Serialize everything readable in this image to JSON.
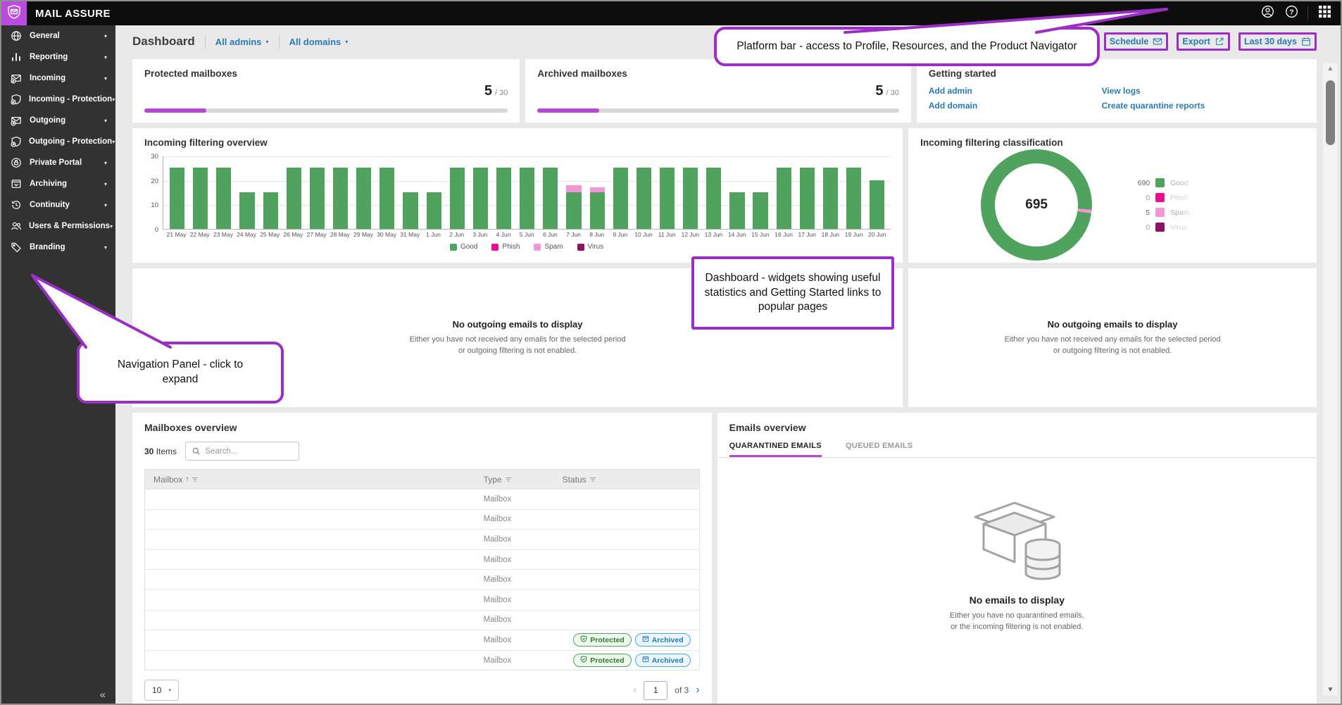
{
  "topbar": {
    "brand": "MAIL ASSURE"
  },
  "icons": {
    "caret_down": "▾",
    "collapse": "«",
    "prev": "‹",
    "next": "›",
    "sort_asc": "↑",
    "up_arrow": "▲",
    "down_arrow": "▼"
  },
  "sidebar": {
    "items": [
      {
        "label": "General",
        "icon": "globe-icon"
      },
      {
        "label": "Reporting",
        "icon": "report-bars-icon"
      },
      {
        "label": "Incoming",
        "icon": "mail-incoming-icon"
      },
      {
        "label": "Incoming - Protection",
        "icon": "shield-incoming-icon"
      },
      {
        "label": "Outgoing",
        "icon": "mail-outgoing-icon"
      },
      {
        "label": "Outgoing - Protection",
        "icon": "shield-outgoing-icon"
      },
      {
        "label": "Private Portal",
        "icon": "lock-circle-icon"
      },
      {
        "label": "Archiving",
        "icon": "archive-box-icon"
      },
      {
        "label": "Continuity",
        "icon": "history-clock-icon"
      },
      {
        "label": "Users & Permissions",
        "icon": "users-icon"
      },
      {
        "label": "Branding",
        "icon": "tag-icon"
      }
    ]
  },
  "header": {
    "title": "Dashboard",
    "admin_filter": "All admins",
    "domain_filter": "All domains",
    "actions": [
      {
        "label": "Schedule",
        "icon": "envelope-icon"
      },
      {
        "label": "Export",
        "icon": "export-icon"
      },
      {
        "label": "Last 30 days",
        "icon": "calendar-icon"
      }
    ]
  },
  "widgets": {
    "protected": {
      "title": "Protected mailboxes",
      "value": "5",
      "of": "/ 30",
      "progress_pct": 17
    },
    "archived": {
      "title": "Archived mailboxes",
      "value": "5",
      "of": "/ 30",
      "progress_pct": 17
    },
    "getting_started": {
      "title": "Getting started",
      "links_left": [
        "Add admin",
        "Add domain"
      ],
      "links_right": [
        "View logs",
        "Create quarantine reports"
      ]
    },
    "outgoing_left": {
      "title": "No outgoing emails to display",
      "line1": "Either you have not received any emails for the selected period",
      "line2": "or outgoing filtering is not enabled."
    },
    "outgoing_right": {
      "title": "No outgoing emails to display",
      "line1": "Either you have not received any emails for the selected period",
      "line2": "or outgoing filtering is not enabled."
    }
  },
  "chart_data": [
    {
      "type": "bar",
      "title": "Incoming filtering overview",
      "categories": [
        "21 May",
        "22 May",
        "23 May",
        "24 May",
        "25 May",
        "26 May",
        "27 May",
        "28 May",
        "29 May",
        "30 May",
        "31 May",
        "1 Jun",
        "2 Jun",
        "3 Jun",
        "4 Jun",
        "5 Jun",
        "6 Jun",
        "7 Jun",
        "8 Jun",
        "9 Jun",
        "10 Jun",
        "11 Jun",
        "12 Jun",
        "13 Jun",
        "14 Jun",
        "15 Jun",
        "16 Jun",
        "17 Jun",
        "18 Jun",
        "19 Jun",
        "20 Jun"
      ],
      "series": [
        {
          "name": "Good",
          "color": "#4fa35e",
          "values": [
            25,
            25,
            25,
            15,
            15,
            25,
            25,
            25,
            25,
            25,
            15,
            15,
            25,
            25,
            25,
            25,
            25,
            15,
            15,
            25,
            25,
            25,
            25,
            25,
            15,
            15,
            25,
            25,
            25,
            25,
            20
          ]
        },
        {
          "name": "Phish",
          "color": "#ec0c8e",
          "values": [
            0,
            0,
            0,
            0,
            0,
            0,
            0,
            0,
            0,
            0,
            0,
            0,
            0,
            0,
            0,
            0,
            0,
            0,
            0,
            0,
            0,
            0,
            0,
            0,
            0,
            0,
            0,
            0,
            0,
            0,
            0
          ]
        },
        {
          "name": "Spam",
          "color": "#f495d6",
          "values": [
            0,
            0,
            0,
            0,
            0,
            0,
            0,
            0,
            0,
            0,
            0,
            0,
            0,
            0,
            0,
            0,
            0,
            3,
            2,
            0,
            0,
            0,
            0,
            0,
            0,
            0,
            0,
            0,
            0,
            0,
            0
          ]
        },
        {
          "name": "Virus",
          "color": "#8d1164",
          "values": [
            0,
            0,
            0,
            0,
            0,
            0,
            0,
            0,
            0,
            0,
            0,
            0,
            0,
            0,
            0,
            0,
            0,
            0,
            0,
            0,
            0,
            0,
            0,
            0,
            0,
            0,
            0,
            0,
            0,
            0,
            0
          ]
        }
      ],
      "ylim": [
        0,
        30
      ],
      "yticks": [
        0,
        10,
        20,
        30
      ],
      "grid": true,
      "legend": [
        "Good",
        "Phish",
        "Spam",
        "Virus"
      ],
      "legend_position": "bottom"
    },
    {
      "type": "donut",
      "title": "Incoming filtering classification",
      "total": "695",
      "segments": [
        {
          "label": "Good",
          "value": 690,
          "color": "#4fa35e"
        },
        {
          "label": "Phish",
          "value": 0,
          "color": "#ec0c8e"
        },
        {
          "label": "Spam",
          "value": 5,
          "color": "#f495d6"
        },
        {
          "label": "Virus",
          "value": 0,
          "color": "#8d1164"
        }
      ],
      "legend_position": "right"
    }
  ],
  "mailboxes": {
    "title": "Mailboxes overview",
    "items_count": "30",
    "items_label": "Items",
    "search_placeholder": "Search...",
    "columns": [
      "Mailbox",
      "Type",
      "Status"
    ],
    "badge_labels": {
      "protected": "Protected",
      "archived": "Archived"
    },
    "rows": [
      {
        "type": "Mailbox",
        "badges": [],
        "blur_width": 102
      },
      {
        "type": "Mailbox",
        "badges": [],
        "blur_width": 118
      },
      {
        "type": "Mailbox",
        "badges": [],
        "blur_width": 128
      },
      {
        "type": "Mailbox",
        "badges": [],
        "blur_width": 100
      },
      {
        "type": "Mailbox",
        "badges": [],
        "blur_width": 124
      },
      {
        "type": "Mailbox",
        "badges": [],
        "blur_width": 96
      },
      {
        "type": "Mailbox",
        "badges": [],
        "blur_width": 110
      },
      {
        "type": "Mailbox",
        "badges": [
          "Protected",
          "Archived"
        ],
        "blur_width": 88
      },
      {
        "type": "Mailbox",
        "badges": [
          "Protected",
          "Archived"
        ],
        "blur_width": 86
      }
    ],
    "pagination": {
      "page_size": "10",
      "current_page": "1",
      "of": "of 3"
    }
  },
  "emails": {
    "title": "Emails overview",
    "tabs": [
      {
        "label": "QUARANTINED EMAILS",
        "active": true
      },
      {
        "label": "QUEUED EMAILS",
        "active": false
      }
    ],
    "empty": {
      "title": "No emails to display",
      "line1": "Either you have no quarantined emails,",
      "line2": "or the incoming filtering is not enabled."
    }
  },
  "annotations": {
    "platform_bar": "Platform bar - access to Profile, Resources, and the Product Navigator",
    "dashboard_widgets": "Dashboard - widgets showing useful statistics and Getting Started links to popular pages",
    "navigation_panel": "Navigation Panel - click to expand"
  },
  "colors": {
    "accent_purple": "#b24bd4",
    "logo_purple": "#bb4be0",
    "annotation_purple": "#9b2fc5",
    "link_blue": "#2a7ab0",
    "good_green": "#4fa35e",
    "phish_magenta": "#ec0c8e",
    "spam_pink": "#f495d6",
    "virus_maroon": "#8d1164"
  }
}
